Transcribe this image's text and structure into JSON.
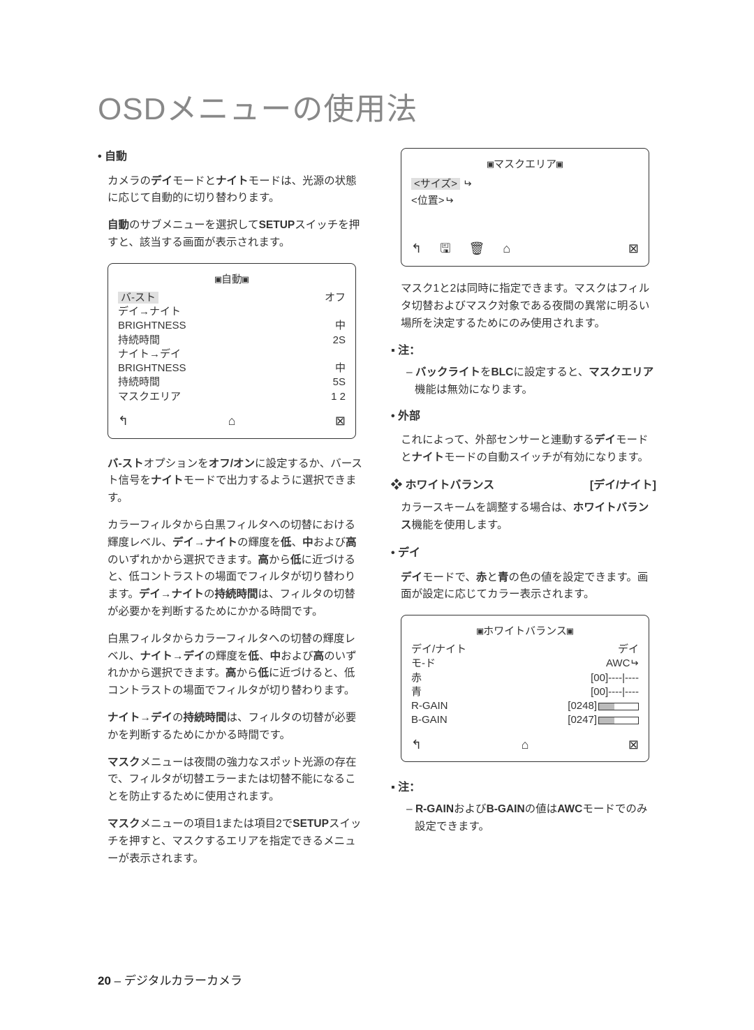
{
  "title": "OSDメニューの使用法",
  "left": {
    "h_auto": "自動",
    "p1a": "カメラの",
    "p1b": "デイ",
    "p1c": "モードと",
    "p1d": "ナイト",
    "p1e": "モードは、光源の状態に応じて自動的に切り替わります。",
    "p2a": "自動",
    "p2b": "のサブメニューを選択して",
    "p2c": "SETUP",
    "p2d": "スイッチを押すと、該当する画面が表示されます。",
    "osd_auto": {
      "title": "自動",
      "rows": [
        {
          "l": "バ-スト",
          "r": "オフ"
        },
        {
          "l": "デイ→ナイト",
          "r": ""
        },
        {
          "l": "BRIGHTNESS",
          "r": "中"
        },
        {
          "l": "持続時間",
          "r": "2S"
        },
        {
          "l": "ナイト→デイ",
          "r": ""
        },
        {
          "l": "BRIGHTNESS",
          "r": "中"
        },
        {
          "l": "持続時間",
          "r": "5S"
        },
        {
          "l": "マスクエリア",
          "r": "1  2"
        }
      ]
    },
    "p3a": "バ-スト",
    "p3b": "オプションを",
    "p3c": "オフ/オン",
    "p3d": "に設定するか、バースト信号を",
    "p3e": "ナイト",
    "p3f": "モードで出力するように選択できます。",
    "p4a": "カラーフィルタから白黒フィルタへの切替における輝度レベル、",
    "p4b": "デイ→ナイト",
    "p4c": "の輝度を",
    "p4d": "低",
    "p4e": "、",
    "p4f": "中",
    "p4g": "および",
    "p4h": "高",
    "p4i": "のいずれかから選択できます。",
    "p4j": "高",
    "p4k": "から",
    "p4l": "低",
    "p4m": "に近づけると、低コントラストの場面でフィルタが切り替わります。",
    "p4n": "デイ→ナイト",
    "p4o": "の",
    "p4p": "持続時間",
    "p4q": "は、フィルタの切替が必要かを判断するためにかかる時間です。",
    "p5a": "白黒フィルタからカラーフィルタへの切替の輝度レベル、",
    "p5b": "ナイト→デイ",
    "p5c": "の輝度を",
    "p5d": "低",
    "p5e": "、",
    "p5f": "中",
    "p5g": "および",
    "p5h": "高",
    "p5i": "のいずれかから選択できます。",
    "p5j": "高",
    "p5k": "から",
    "p5l": "低",
    "p5m": "に近づけると、低コントラストの場面でフィルタが切り替わります。",
    "p6a": "ナイト→デイ",
    "p6b": "の",
    "p6c": "持続時間",
    "p6d": "は、フィルタの切替が必要かを判断するためにかかる時間です。",
    "p7a": "マスク",
    "p7b": "メニューは夜間の強力なスポット光源の存在で、フィルタが切替エラーまたは切替不能になることを防止するために使用されます。",
    "p8a": "マスク",
    "p8b": "メニューの項目1または項目2で",
    "p8c": "SETUP",
    "p8d": "スイッチを押すと、マスクするエリアを指定できるメニューが表示されます。"
  },
  "right": {
    "osd_mask": {
      "title": "マスクエリア",
      "size_label": "<サイズ>",
      "pos_label": "<位置>"
    },
    "p1": "マスク1と2は同時に指定できます。マスクはフィルタ切替およびマスク対象である夜間の異常に明るい場所を決定するためにのみ使用されます。",
    "note1_h": "注：",
    "note1a": "バックライト",
    "note1b": "を",
    "note1c": "BLC",
    "note1d": "に設定すると、",
    "note1e": "マスクエリア",
    "note1f": "機能は無効になります。",
    "h_ext": "外部",
    "p_ext_a": "これによって、外部センサーと連動する",
    "p_ext_b": "デイ",
    "p_ext_c": "モードと",
    "p_ext_d": "ナイト",
    "p_ext_e": "モードの自動スイッチが有効になります。",
    "h_wb": "ホワイトバランス",
    "h_wb_tail": "[デイ/ナイト]",
    "p_wb_a": "カラースキームを調整する場合は、",
    "p_wb_b": "ホワイトバランス",
    "p_wb_c": "機能を使用します。",
    "h_day": "デイ",
    "p_day_a": "デイ",
    "p_day_b": "モードで、",
    "p_day_c": "赤",
    "p_day_d": "と",
    "p_day_e": "青",
    "p_day_f": "の色の値を設定できます。画面が設定に応じてカラー表示されます。",
    "osd_wb": {
      "title": "ホワイトバランス",
      "rows": [
        {
          "l": "デイ/ナイト",
          "r": "デイ"
        },
        {
          "l": "モ-ド",
          "r": "AWC"
        },
        {
          "l": "赤",
          "r": "[00]----|----"
        },
        {
          "l": "青",
          "r": "[00]----|----"
        },
        {
          "l": "R-GAIN",
          "r": "[0248]"
        },
        {
          "l": "B-GAIN",
          "r": "[0247]"
        }
      ]
    },
    "note2_h": "注：",
    "note2a": "R-GAIN",
    "note2b": "および",
    "note2c": "B-GAIN",
    "note2d": "の値は",
    "note2e": "AWC",
    "note2f": "モードでのみ設定できます。"
  },
  "footer": {
    "page": "20",
    "sep": " – ",
    "label": "デジタルカラーカメラ"
  }
}
